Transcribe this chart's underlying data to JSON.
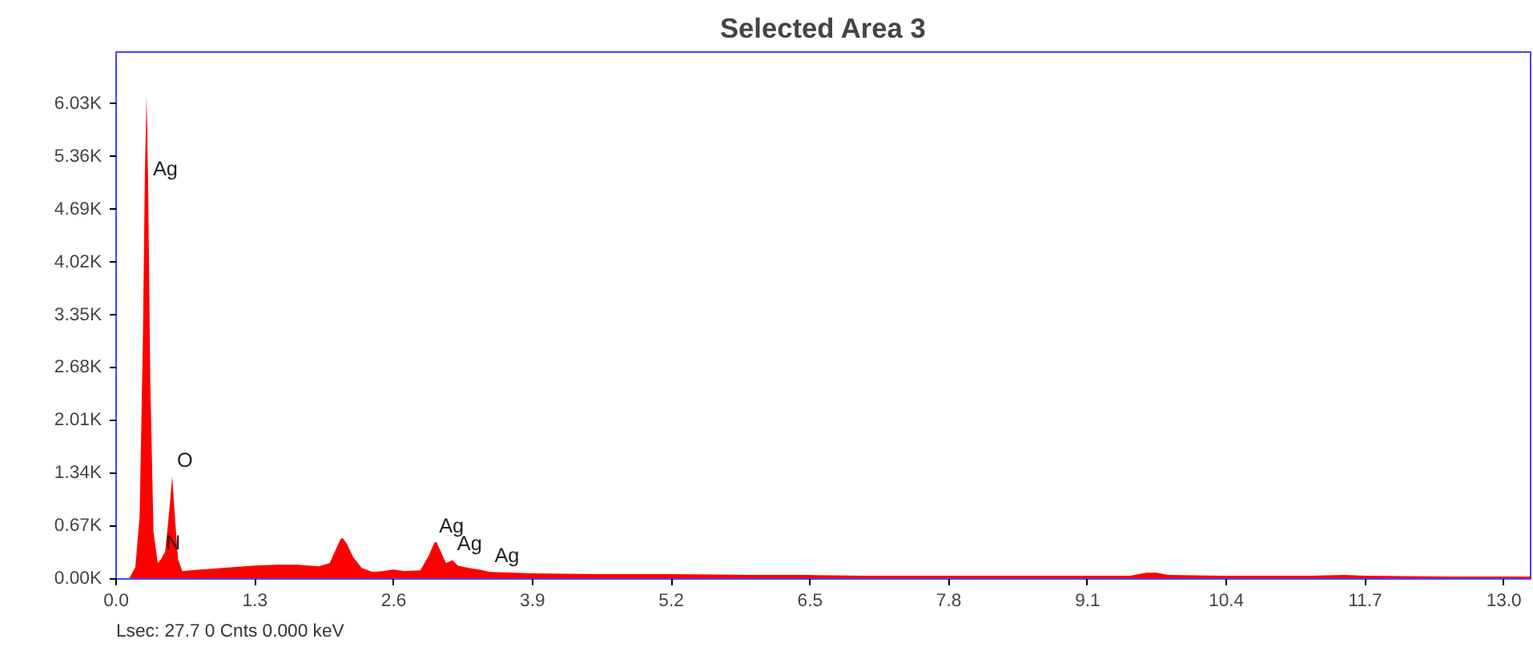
{
  "chart_data": {
    "type": "area",
    "title": "Selected Area 3",
    "x": [
      0.05,
      0.12,
      0.18,
      0.22,
      0.25,
      0.27,
      0.285,
      0.3,
      0.32,
      0.35,
      0.39,
      0.42,
      0.46,
      0.5,
      0.525,
      0.55,
      0.58,
      0.62,
      0.7,
      0.9,
      1.1,
      1.3,
      1.5,
      1.7,
      1.9,
      2.0,
      2.05,
      2.1,
      2.12,
      2.16,
      2.22,
      2.3,
      2.4,
      2.5,
      2.6,
      2.7,
      2.85,
      2.93,
      2.98,
      3.0,
      3.04,
      3.09,
      3.15,
      3.2,
      3.3,
      3.4,
      3.5,
      3.9,
      4.5,
      5.2,
      6.0,
      6.5,
      7.0,
      7.8,
      8.5,
      9.1,
      9.5,
      9.65,
      9.75,
      9.85,
      10.4,
      11.2,
      11.5,
      11.7,
      12.5,
      13.0,
      13.25
    ],
    "series": [
      {
        "color": "#ff0000",
        "values": [
          0,
          0,
          150,
          800,
          3000,
          5200,
          6130,
          5000,
          2500,
          600,
          200,
          250,
          350,
          900,
          1300,
          800,
          250,
          100,
          110,
          130,
          150,
          170,
          180,
          180,
          160,
          200,
          350,
          500,
          520,
          450,
          280,
          140,
          90,
          100,
          120,
          100,
          110,
          300,
          460,
          470,
          350,
          200,
          240,
          170,
          140,
          120,
          90,
          70,
          60,
          60,
          50,
          50,
          40,
          40,
          40,
          40,
          40,
          80,
          80,
          50,
          40,
          40,
          50,
          40,
          30,
          30,
          30
        ]
      }
    ],
    "xlim": [
      0,
      13.25
    ],
    "xticks": [
      {
        "value": 0,
        "label": "0.0"
      },
      1.3,
      2.6,
      3.9,
      5.2,
      6.5,
      7.8,
      9.1,
      10.4,
      11.7,
      {
        "value": 13,
        "label": "13.0"
      }
    ],
    "ylim": [
      0,
      6690
    ],
    "yticks": [
      {
        "value": 0,
        "label": "0.00K"
      },
      {
        "value": 670,
        "label": "0.67K"
      },
      {
        "value": 1340,
        "label": "1.34K"
      },
      {
        "value": 2010,
        "label": "2.01K"
      },
      {
        "value": 2680,
        "label": "2.68K"
      },
      {
        "value": 3350,
        "label": "3.35K"
      },
      {
        "value": 4020,
        "label": "4.02K"
      },
      {
        "value": 4690,
        "label": "4.69K"
      },
      {
        "value": 5360,
        "label": "5.36K"
      },
      {
        "value": 6030,
        "label": "6.03K"
      }
    ],
    "grid": false,
    "annotations": [
      {
        "text": "Ag",
        "x": 0.3,
        "y": 5000
      },
      {
        "text": "O",
        "x": 0.525,
        "y": 1300
      },
      {
        "text": "N",
        "x": 0.42,
        "y": 250
      },
      {
        "text": "Ag",
        "x": 2.98,
        "y": 470
      },
      {
        "text": "Ag",
        "x": 3.15,
        "y": 240
      },
      {
        "text": "Ag",
        "x": 3.5,
        "y": 90
      },
      "Lsec: 27.7 0 Cnts  0.000 keV"
    ]
  }
}
